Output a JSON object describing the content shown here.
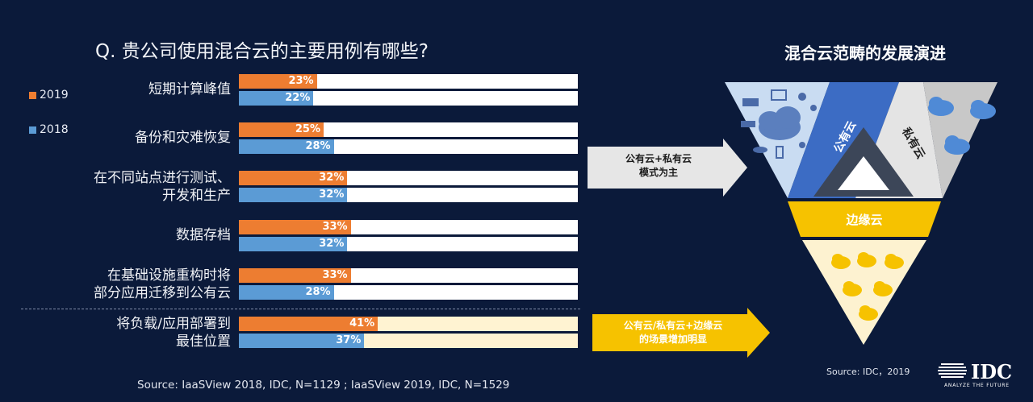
{
  "question": "Q. 贵公司使用混合云的主要用例有哪些?",
  "legend": [
    {
      "label": "2019",
      "color": "#ed7d31"
    },
    {
      "label": "2018",
      "color": "#5b9bd5"
    }
  ],
  "chart_data": {
    "type": "bar",
    "orientation": "horizontal",
    "categories": [
      [
        "短期计算峰值"
      ],
      [
        "备份和灾难恢复"
      ],
      [
        "在不同站点进行测试、",
        "开发和生产"
      ],
      [
        "数据存档"
      ],
      [
        "在基础设施重构时将",
        "部分应用迁移到公有云"
      ],
      [
        "将负载/应用部署到",
        "最佳位置"
      ]
    ],
    "series": [
      {
        "name": "2019",
        "color": "#ed7d31",
        "values": [
          23,
          25,
          32,
          33,
          33,
          41
        ],
        "labels": [
          "23%",
          "25%",
          "32%",
          "33%",
          "33%",
          "41%"
        ]
      },
      {
        "name": "2018",
        "color": "#5b9bd5",
        "values": [
          22,
          28,
          32,
          32,
          28,
          37
        ],
        "labels": [
          "22%",
          "28%",
          "32%",
          "32%",
          "28%",
          "37%"
        ]
      }
    ],
    "xlim": [
      0,
      100
    ],
    "highlighted_category": 5,
    "source": "Source: IaaSView 2018, IDC, N=1129 ; IaaSView 2019, IDC, N=1529"
  },
  "diagram": {
    "title": "混合云范畴的发展演进",
    "public_cloud": "公有云",
    "private_cloud": "私有云",
    "edge_cloud": "边缘云",
    "arrow1": [
      "公有云+私有云",
      "模式为主"
    ],
    "arrow2": [
      "公有云/私有云+边缘云",
      "的场景增加明显"
    ],
    "source": "Source: IDC，2019"
  },
  "brand": {
    "logo": "IDC",
    "tagline": "ANALYZE THE FUTURE"
  }
}
